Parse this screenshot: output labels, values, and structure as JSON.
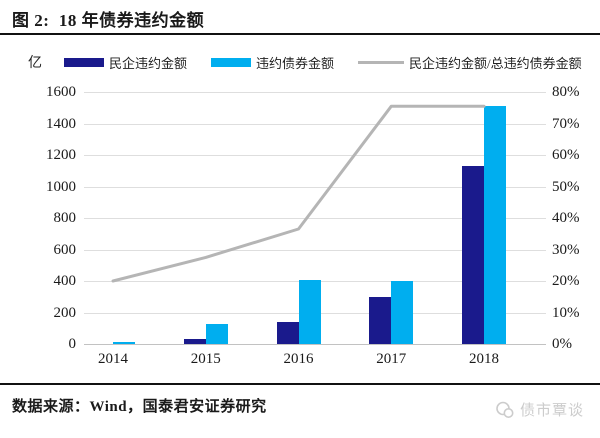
{
  "title": "图 2:  18 年债券违约金额",
  "unit_label": "亿",
  "legend": [
    {
      "label": "民企违约金额"
    },
    {
      "label": "违约债券金额"
    },
    {
      "label": "民企违约金额/总违约债券金额"
    }
  ],
  "colors": {
    "dark_blue": "#1A1A8C",
    "light_blue": "#00AEEF",
    "gray_line": "#B5B5B5"
  },
  "chart_data": {
    "type": "bar",
    "subtype": "grouped bars with secondary-axis line",
    "categories": [
      "2014",
      "2015",
      "2016",
      "2017",
      "2018"
    ],
    "series": [
      {
        "name": "民企违约金额",
        "type": "bar",
        "axis": "left",
        "color": "#1A1A8C",
        "values": [
          0,
          30,
          140,
          300,
          1130
        ]
      },
      {
        "name": "违约债券金额",
        "type": "bar",
        "axis": "left",
        "color": "#00AEEF",
        "values": [
          12,
          125,
          405,
          400,
          1510
        ]
      },
      {
        "name": "民企违约金额/总违约债券金额",
        "type": "line",
        "axis": "right",
        "color": "#B5B5B5",
        "values": [
          20,
          27.5,
          36.5,
          75.5,
          75.5
        ]
      }
    ],
    "left_axis": {
      "label": "亿",
      "min": 0,
      "max": 1600,
      "step": 200,
      "ticks": [
        "0",
        "200",
        "400",
        "600",
        "800",
        "1000",
        "1200",
        "1400",
        "1600"
      ]
    },
    "right_axis": {
      "min": 0,
      "max": 80,
      "step": 10,
      "unit": "%",
      "ticks": [
        "0%",
        "10%",
        "20%",
        "30%",
        "40%",
        "50%",
        "60%",
        "70%",
        "80%"
      ]
    },
    "grid": true,
    "legend_position": "top"
  },
  "footer": {
    "source": "数据来源：Wind，国泰君安证券研究"
  },
  "watermark": {
    "text": "债市覃谈"
  }
}
